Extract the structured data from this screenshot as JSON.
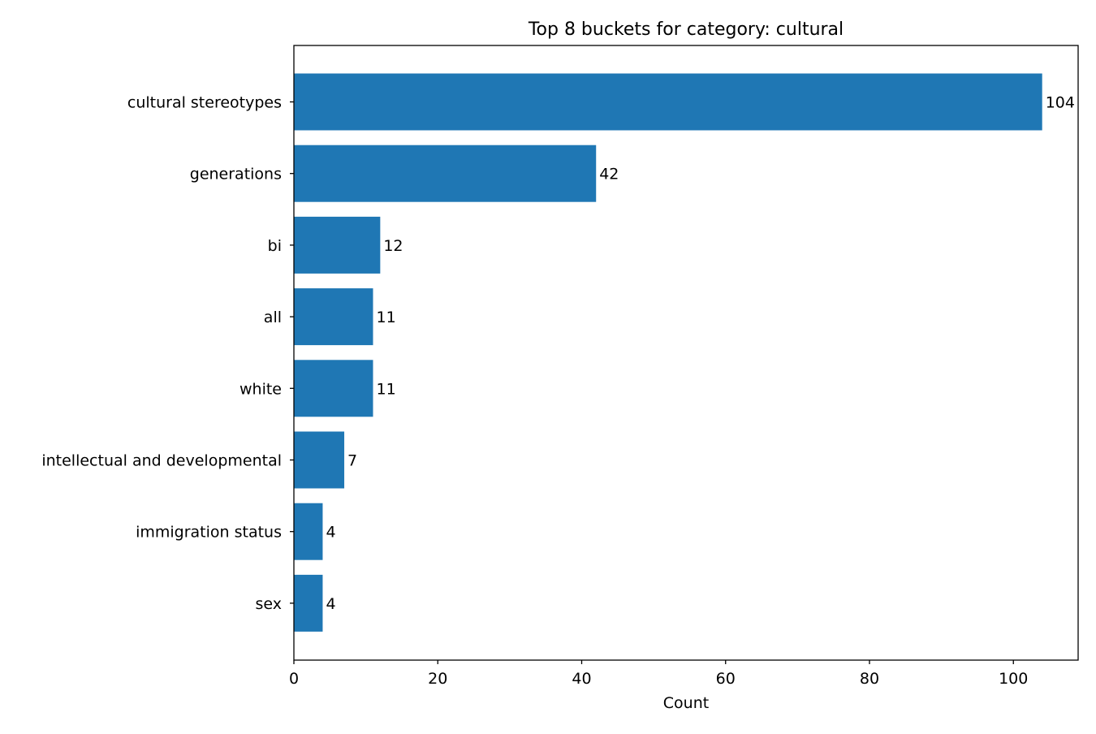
{
  "chart_data": {
    "type": "bar",
    "orientation": "horizontal",
    "title": "Top 8 buckets for category: cultural",
    "xlabel": "Count",
    "ylabel": "",
    "xlim": [
      0,
      109
    ],
    "xticks": [
      0,
      20,
      40,
      60,
      80,
      100
    ],
    "categories": [
      "cultural stereotypes",
      "generations",
      "bi",
      "all",
      "white",
      "intellectual and developmental",
      "immigration status",
      "sex"
    ],
    "values": [
      104,
      42,
      12,
      11,
      11,
      7,
      4,
      4
    ],
    "bar_color": "#1f77b4",
    "grid": false,
    "legend": "none"
  }
}
